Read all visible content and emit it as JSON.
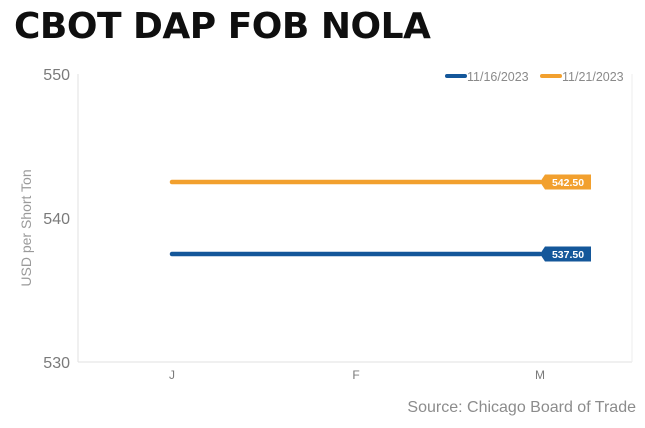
{
  "title": "CBOT DAP FOB NOLA",
  "source": "Source: Chicago Board of Trade",
  "colors": {
    "series_1": "#14579a",
    "series_2": "#f2a02e",
    "axis_text": "#9a9a9a",
    "tick_text": "#7a7a7a",
    "axis_line": "#e2e2e2"
  },
  "chart_data": {
    "type": "line",
    "categories": [
      "J",
      "F",
      "M"
    ],
    "ylabel": "USD per Short Ton",
    "yticks": [
      550,
      540,
      530
    ],
    "ylim": [
      530,
      550
    ],
    "grid": false,
    "legend_position": "top-right",
    "series": [
      {
        "name": "11/16/2023",
        "color": "#14579a",
        "values": [
          537.5,
          537.5,
          537.5
        ],
        "end_label": "537.50"
      },
      {
        "name": "11/21/2023",
        "color": "#f2a02e",
        "values": [
          542.5,
          542.5,
          542.5
        ],
        "end_label": "542.50"
      }
    ]
  }
}
